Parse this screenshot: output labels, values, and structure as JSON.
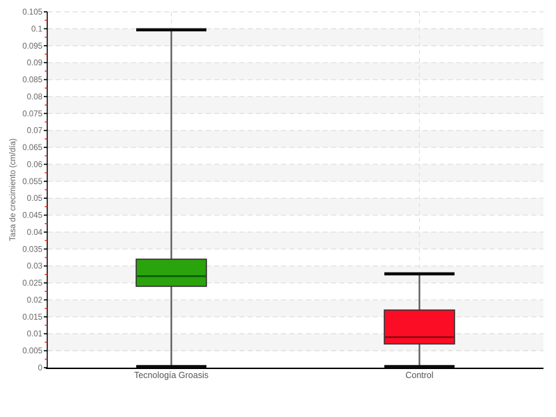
{
  "chart_data": {
    "type": "boxplot",
    "title": "",
    "xlabel": "",
    "ylabel": "Tasa de crecimiento (cm/día)",
    "ylim": [
      0,
      0.105
    ],
    "ytick_step": 0.005,
    "ytick_labels": [
      "0",
      "0.005",
      "0.01",
      "0.015",
      "0.02",
      "0.025",
      "0.03",
      "0.035",
      "0.04",
      "0.045",
      "0.05",
      "0.055",
      "0.06",
      "0.065",
      "0.07",
      "0.075",
      "0.08",
      "0.085",
      "0.09",
      "0.095",
      "0.1",
      "0.105"
    ],
    "categories": [
      "Tecnología Groasis",
      "Control"
    ],
    "series": [
      {
        "name": "Tecnología Groasis",
        "min": 0,
        "q1": 0.024,
        "median": 0.027,
        "q3": 0.032,
        "max": 0.1,
        "fill_color": "#2AA30C",
        "median_color": "#0E5A08"
      },
      {
        "name": "Control",
        "min": 0,
        "q1": 0.007,
        "median": 0.009,
        "q3": 0.017,
        "max": 0.028,
        "fill_color": "#FB0D25",
        "median_color": "#8F0413"
      }
    ],
    "legend": "none",
    "grid": {
      "horizontal_gridlines": "dashed",
      "vertical_gridlines_at_categories": "dashed",
      "alternating_horizontal_bands": true,
      "minor_ticks": "red, at midpoints between major ticks"
    },
    "style_colors": {
      "background": "#FFFFFF",
      "band": "#F5F5F5",
      "gridline": "#E0E0E0",
      "axis_line": "#000000",
      "tick_label": "#666666",
      "axis_title": "#666666",
      "minor_tick": "#E02222",
      "whisker_line": "#555555",
      "whisker_cap": "#0A0A0A",
      "box_border": "#333333",
      "category_label": "#555555"
    }
  }
}
